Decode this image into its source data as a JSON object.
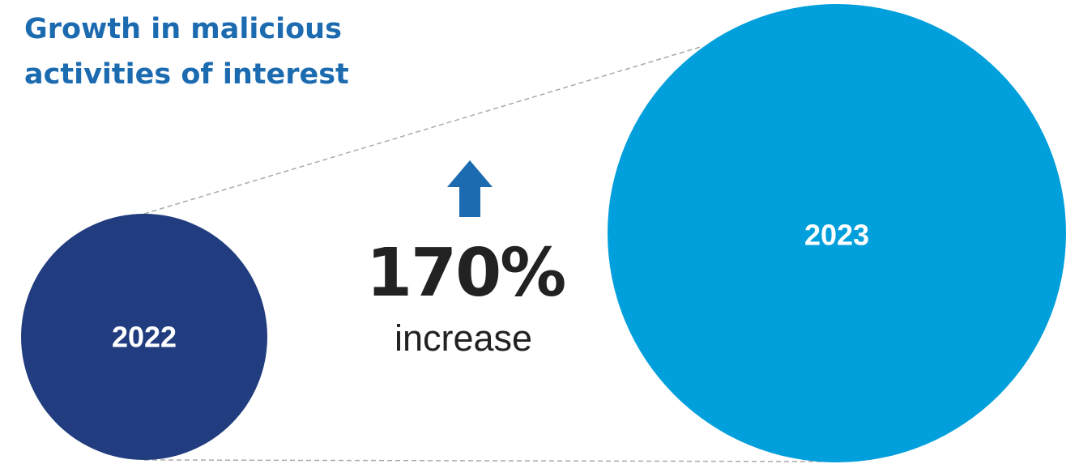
{
  "title": [
    "Growth in malicious",
    "activities of interest"
  ],
  "chart_data": {
    "type": "bubble",
    "categories": [
      "2022",
      "2023"
    ],
    "colors": [
      "#213D7F",
      "#019FDB"
    ]
  },
  "change": {
    "value": "170%",
    "caption": "increase",
    "direction": "up",
    "arrow_color": "#1C6BB0"
  },
  "connector_color": "#A9A9A9"
}
